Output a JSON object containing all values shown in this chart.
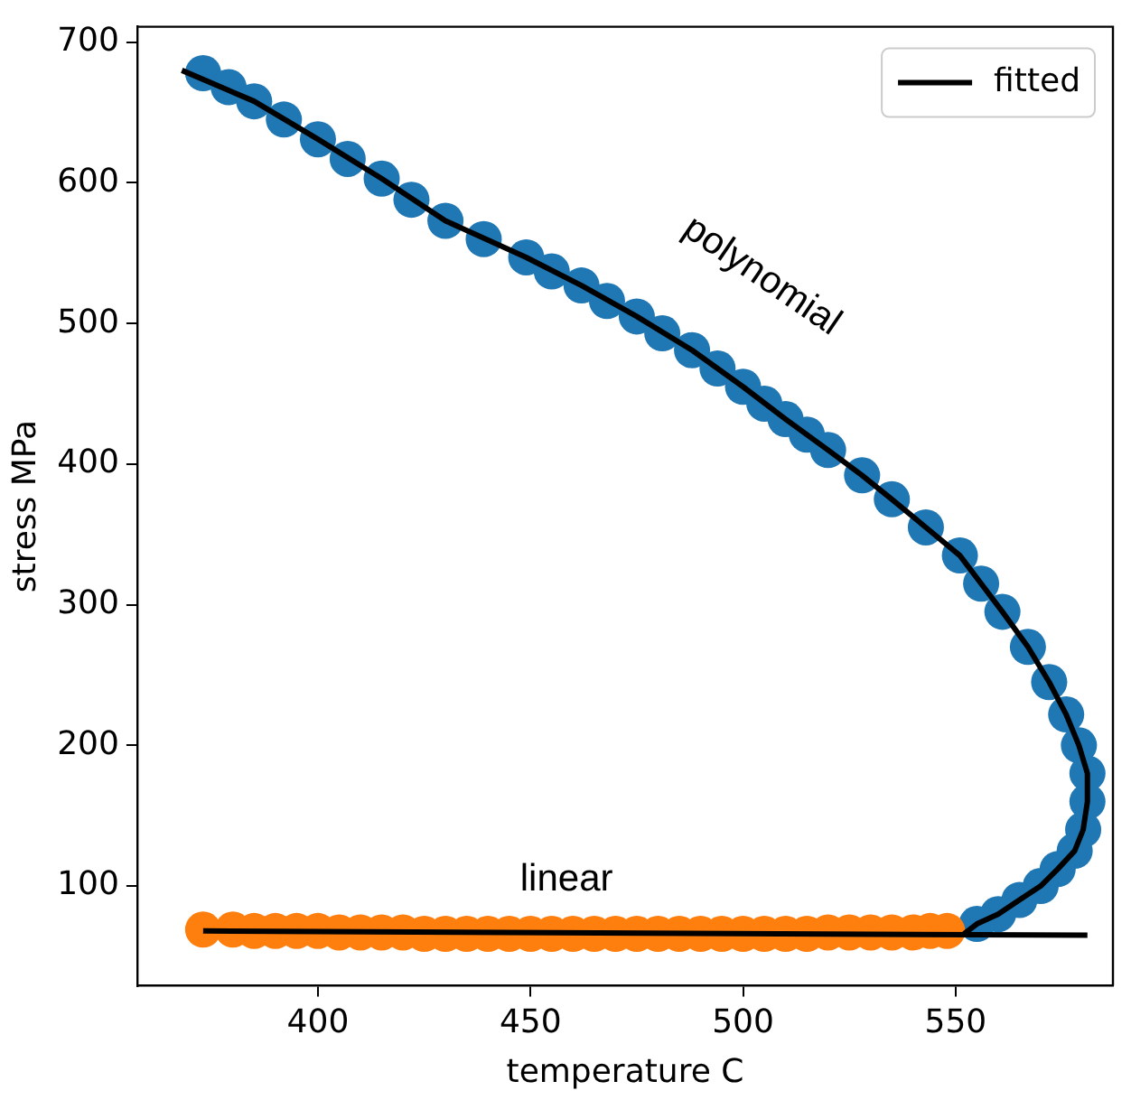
{
  "chart_data": {
    "type": "scatter",
    "xlabel": "temperature C",
    "ylabel": "stress MPa",
    "xlim": [
      357.5,
      587
    ],
    "xticks": [
      400,
      450,
      500,
      550
    ],
    "ylim": [
      29,
      711
    ],
    "yticks": [
      100,
      200,
      300,
      400,
      500,
      600,
      700
    ],
    "grid": false,
    "legend": "top right",
    "annotations": [
      "polynomial",
      "linear"
    ],
    "series": [
      {
        "type": "scatter",
        "marker": "circle",
        "color": "#1f77b4",
        "x": [
          373,
          379,
          385,
          392,
          400,
          407,
          415,
          422,
          430,
          439,
          449,
          455,
          462,
          468,
          475,
          481,
          488,
          494,
          500,
          505,
          510,
          515,
          520,
          528,
          535,
          543,
          551,
          556,
          561,
          567,
          572,
          576,
          579,
          581,
          581,
          580,
          578,
          574,
          570,
          565,
          560,
          555
        ],
        "values": [
          678,
          668,
          658,
          645,
          631,
          617,
          603,
          588,
          573,
          560,
          547,
          537,
          527,
          516,
          505,
          493,
          481,
          468,
          455,
          443,
          432,
          421,
          410,
          392,
          375,
          355,
          335,
          315,
          295,
          270,
          245,
          222,
          200,
          180,
          160,
          140,
          125,
          112,
          100,
          90,
          80,
          73
        ]
      },
      {
        "type": "scatter",
        "marker": "circle",
        "color": "#ff7f0e",
        "x": [
          373,
          380,
          385,
          390,
          395,
          400,
          405,
          410,
          415,
          420,
          425,
          430,
          435,
          440,
          445,
          450,
          455,
          460,
          465,
          470,
          475,
          480,
          485,
          490,
          495,
          500,
          505,
          510,
          515,
          520,
          525,
          530,
          535,
          540,
          544,
          548
        ],
        "values": [
          69,
          69,
          68,
          68,
          68,
          68,
          67,
          67,
          67,
          67,
          66,
          66,
          66,
          66,
          66,
          66,
          66,
          66,
          66,
          66,
          66,
          66,
          66,
          66,
          66,
          66,
          66,
          66,
          66,
          67,
          67,
          67,
          67,
          67,
          68,
          68
        ]
      },
      {
        "type": "line",
        "marker": "none",
        "name": "fitted",
        "color": "#000000",
        "x": [
          368,
          385,
          400,
          415,
          430,
          449,
          462,
          475,
          488,
          500,
          510,
          520,
          528,
          535,
          543,
          551,
          556,
          561,
          567,
          572,
          576,
          579,
          581,
          581,
          580,
          578,
          574,
          570,
          565,
          560,
          555,
          552
        ],
        "values": [
          680,
          658,
          631,
          603,
          573,
          547,
          527,
          505,
          481,
          455,
          432,
          410,
          392,
          375,
          355,
          335,
          315,
          295,
          270,
          245,
          222,
          200,
          180,
          160,
          140,
          125,
          112,
          100,
          90,
          80,
          73,
          66
        ]
      },
      {
        "type": "line",
        "marker": "none",
        "color": "#000000",
        "x": [
          373,
          581
        ],
        "values": [
          68,
          65
        ]
      }
    ]
  }
}
